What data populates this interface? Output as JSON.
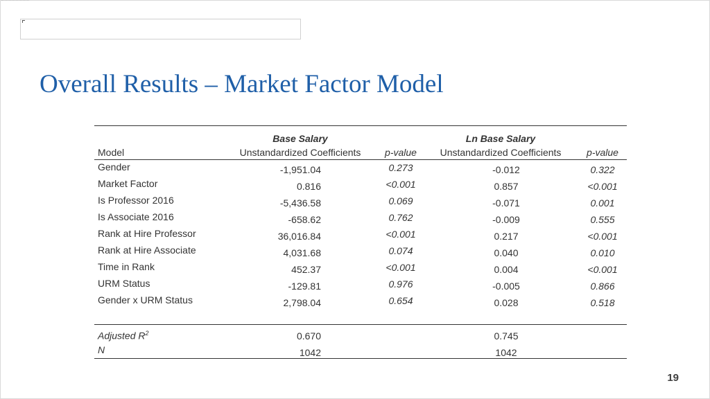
{
  "slide": {
    "title": "Overall Results – Market Factor Model",
    "page_number": "19"
  },
  "table": {
    "groups": {
      "base": "Base Salary",
      "ln": "Ln Base Salary"
    },
    "columns": {
      "model": "Model",
      "base_coef": "Unstandardized Coefficients",
      "base_p": "p-value",
      "ln_coef": "Unstandardized Coefficients",
      "ln_p": "p-value"
    },
    "rows": [
      {
        "label": "Gender",
        "base_coef": "-1,951.04",
        "base_p": "0.273",
        "ln_coef": "-0.012",
        "ln_p": "0.322"
      },
      {
        "label": "Market Factor",
        "base_coef": "0.816",
        "base_p": "<0.001",
        "ln_coef": "0.857",
        "ln_p": "<0.001"
      },
      {
        "label": "Is Professor 2016",
        "base_coef": "-5,436.58",
        "base_p": "0.069",
        "ln_coef": "-0.071",
        "ln_p": "0.001"
      },
      {
        "label": "Is Associate 2016",
        "base_coef": "-658.62",
        "base_p": "0.762",
        "ln_coef": "-0.009",
        "ln_p": "0.555"
      },
      {
        "label": "Rank at Hire Professor",
        "base_coef": "36,016.84",
        "base_p": "<0.001",
        "ln_coef": "0.217",
        "ln_p": "<0.001"
      },
      {
        "label": "Rank at Hire Associate",
        "base_coef": "4,031.68",
        "base_p": "0.074",
        "ln_coef": "0.040",
        "ln_p": "0.010"
      },
      {
        "label": "Time in Rank",
        "base_coef": "452.37",
        "base_p": "<0.001",
        "ln_coef": "0.004",
        "ln_p": "<0.001"
      },
      {
        "label": "URM Status",
        "base_coef": "-129.81",
        "base_p": "0.976",
        "ln_coef": "-0.005",
        "ln_p": "0.866"
      },
      {
        "label": "Gender x URM Status",
        "base_coef": "2,798.04",
        "base_p": "0.654",
        "ln_coef": "0.028",
        "ln_p": "0.518"
      }
    ],
    "summary": {
      "adj_r2_label": "Adjusted R",
      "adj_r2_sup": "2",
      "adj_r2_base": "0.670",
      "adj_r2_ln": "0.745",
      "n_label": "N",
      "n_base": "1042",
      "n_ln": "1042"
    }
  }
}
